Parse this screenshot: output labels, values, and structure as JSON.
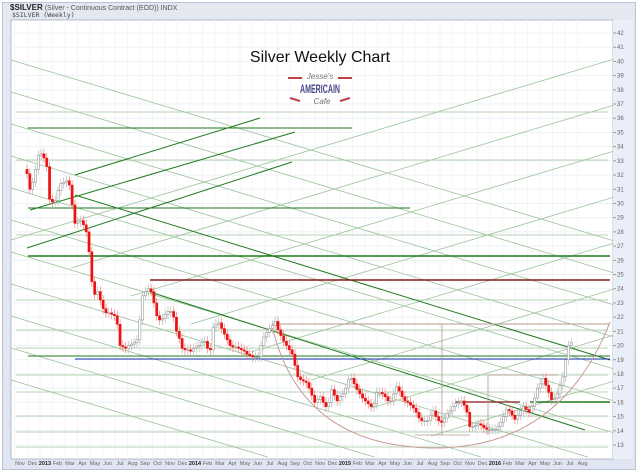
{
  "header": {
    "symbol": "$SILVER",
    "description": "(Silver - Continuous Contract (EOD)) INDX",
    "legend": "$SILVER (Weekly)"
  },
  "logo": {
    "line1": "Jesse's",
    "line2": "AMERICAIN",
    "line3": "Cafe"
  },
  "chart_data": {
    "type": "candlestick",
    "title": "Silver Weekly Chart",
    "frequency": "weekly",
    "y_scale": "linear",
    "ylim": [
      13,
      42
    ],
    "y_ticks": [
      13,
      14,
      15,
      16,
      17,
      18,
      19,
      20,
      21,
      22,
      23,
      24,
      25,
      26,
      27,
      28,
      29,
      30,
      31,
      32,
      33,
      34,
      35,
      36,
      37,
      38,
      39,
      40,
      41,
      42
    ],
    "x_tick_labels": [
      "Nov",
      "Dec",
      "2013",
      "Feb",
      "Mar",
      "Apr",
      "May",
      "Jun",
      "Jul",
      "Aug",
      "Sep",
      "Oct",
      "Nov",
      "Dec",
      "2014",
      "Feb",
      "Mar",
      "Apr",
      "May",
      "Jun",
      "Jul",
      "Aug",
      "Sep",
      "Oct",
      "Nov",
      "Dec",
      "2015",
      "Feb",
      "Mar",
      "Apr",
      "May",
      "Jun",
      "Jul",
      "Aug",
      "Sep",
      "Oct",
      "Nov",
      "Dec",
      "2016",
      "Feb",
      "Mar",
      "Apr",
      "May",
      "Jun",
      "Jul",
      "Aug"
    ],
    "grid": true,
    "colors": {
      "down": "#ee1111",
      "up": "#ffffff",
      "up_border": "#888888",
      "trend_light": "#9cc49a",
      "trend_dark": "#1f7a1f",
      "resistance": "#8b1a1a",
      "support": "#1133aa",
      "arc": "#c89a9a"
    },
    "weekly_closes": [
      32.1,
      31.0,
      31.5,
      32.4,
      33.4,
      33.5,
      33.2,
      32.6,
      30.3,
      30.1,
      30.2,
      30.9,
      31.4,
      31.5,
      31.6,
      31.3,
      29.9,
      28.6,
      28.7,
      28.8,
      28.5,
      28.0,
      26.6,
      24.5,
      23.6,
      23.8,
      23.2,
      22.6,
      22.3,
      22.3,
      22.2,
      22.1,
      21.5,
      20.0,
      19.9,
      19.8,
      20.0,
      20.1,
      20.2,
      20.4,
      21.8,
      23.5,
      23.8,
      24.0,
      23.8,
      23.0,
      22.1,
      21.8,
      21.9,
      22.2,
      22.4,
      22.4,
      22.0,
      21.0,
      20.5,
      19.8,
      19.7,
      19.7,
      19.6,
      19.8,
      19.9,
      20.0,
      20.2,
      20.3,
      19.8,
      19.7,
      21.3,
      21.5,
      21.6,
      21.2,
      20.8,
      20.4,
      20.0,
      19.9,
      19.9,
      19.8,
      19.7,
      19.6,
      19.4,
      19.3,
      19.2,
      19.2,
      19.2,
      20.0,
      20.6,
      20.9,
      21.2,
      21.4,
      21.7,
      21.1,
      20.7,
      20.3,
      20.0,
      19.7,
      19.4,
      18.6,
      17.8,
      17.6,
      17.5,
      17.4,
      17.0,
      16.5,
      16.0,
      16.2,
      16.4,
      16.0,
      15.7,
      16.0,
      16.9,
      16.5,
      16.1,
      16.4,
      16.6,
      17.0,
      17.6,
      17.7,
      17.3,
      16.9,
      16.6,
      16.3,
      16.1,
      15.9,
      15.7,
      15.9,
      16.7,
      16.7,
      16.6,
      16.4,
      16.1,
      16.1,
      16.6,
      17.1,
      16.8,
      16.4,
      16.1,
      16.0,
      15.8,
      15.6,
      15.3,
      14.9,
      14.7,
      14.7,
      14.7,
      15.1,
      15.4,
      15.0,
      14.7,
      14.6,
      14.9,
      15.2,
      15.4,
      15.7,
      15.9,
      16.0,
      16.1,
      15.8,
      15.3,
      14.3,
      14.3,
      14.4,
      14.5,
      14.4,
      14.2,
      14.1,
      14.1,
      14.1,
      14.1,
      14.3,
      14.6,
      15.0,
      15.5,
      15.4,
      15.1,
      14.8,
      15.1,
      15.4,
      15.7,
      15.5,
      15.3,
      15.7,
      16.3,
      17.0,
      17.3,
      17.7,
      17.2,
      16.7,
      16.2,
      16.3,
      16.6,
      17.2,
      17.8,
      19.0,
      20.0,
      20.2
    ]
  }
}
